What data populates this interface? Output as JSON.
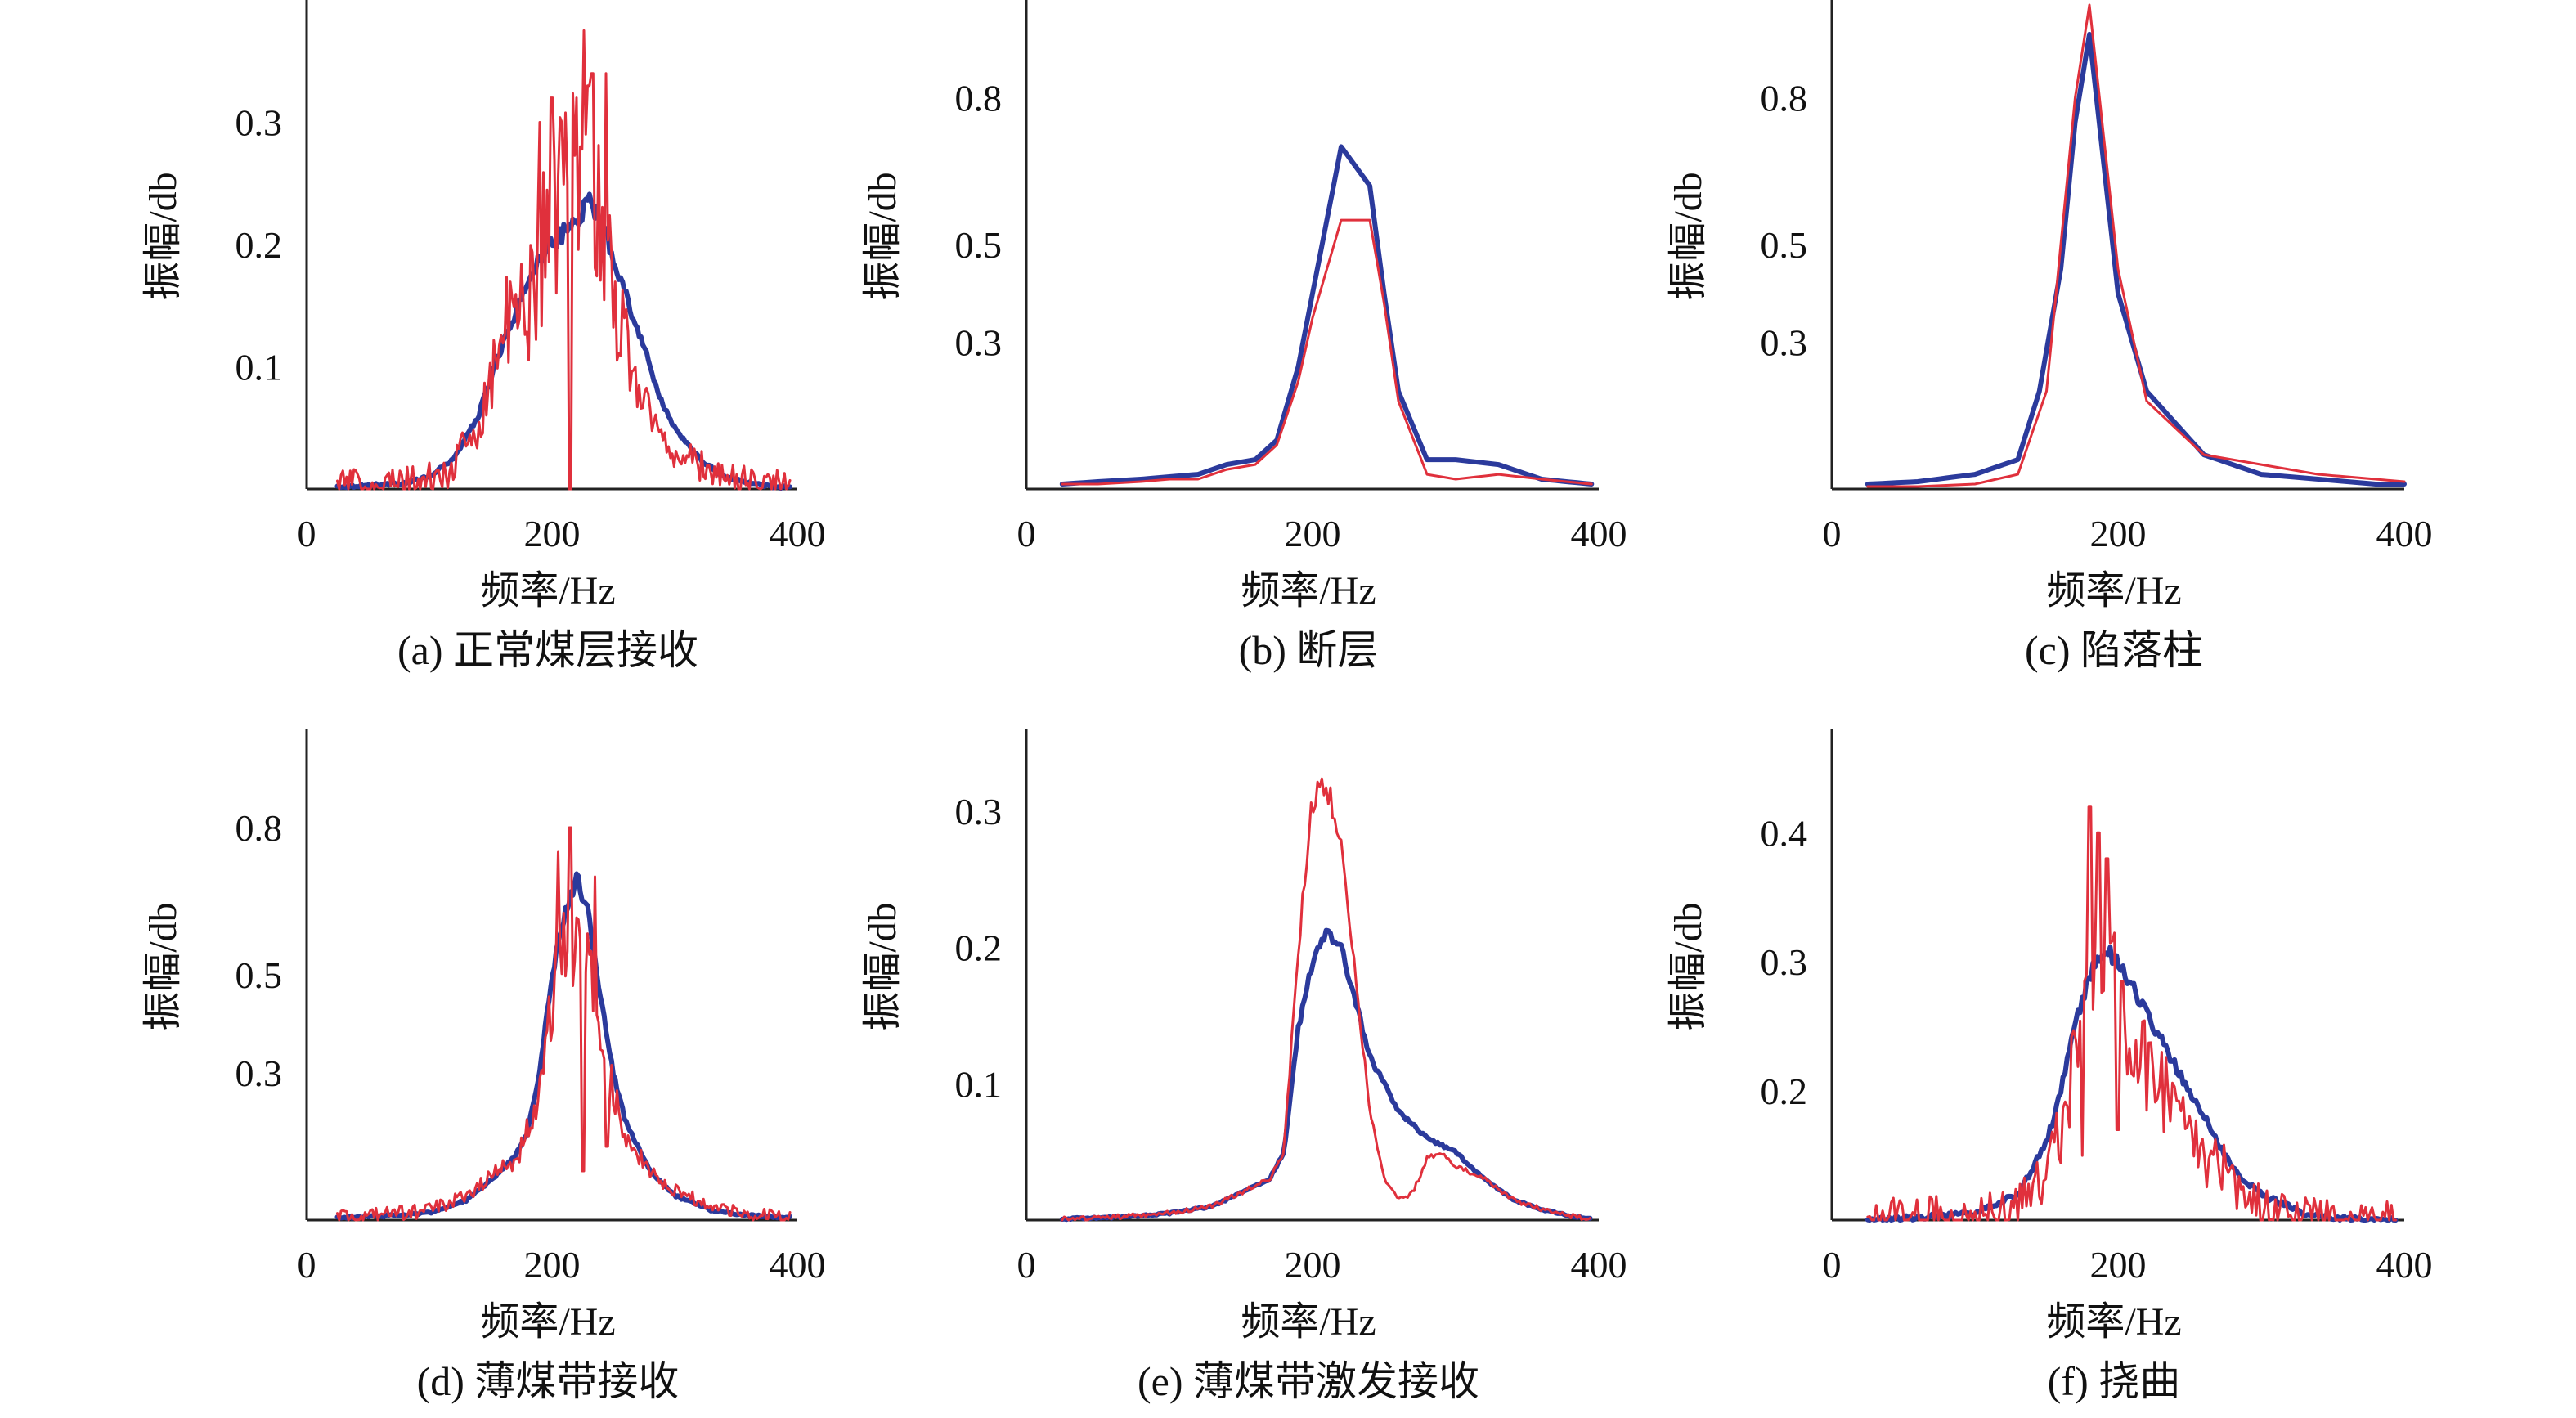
{
  "chart_data": [
    {
      "type": "line",
      "caption": "(a) 正常煤层接收",
      "xlabel": "频率/Hz",
      "ylabel": "振幅/db",
      "xlim": [
        0,
        400
      ],
      "ylim": [
        0,
        0.4
      ],
      "xticks": [
        0,
        200,
        400
      ],
      "yticks": [
        0.1,
        0.2,
        0.3
      ],
      "xtick_labels": [
        "0",
        "200",
        "400"
      ],
      "ytick_labels": [
        "0.1",
        "0.2",
        "0.3"
      ],
      "colors": {
        "blue": "#2b3a9c",
        "red": "#e0303c"
      },
      "series": [
        {
          "color": "#2b3a9c",
          "noise": 0.008,
          "x": [
            25,
            50,
            80,
            100,
            120,
            140,
            150,
            160,
            170,
            180,
            190,
            200,
            210,
            220,
            230,
            240,
            250,
            260,
            270,
            280,
            290,
            300,
            320,
            340,
            360,
            380,
            395
          ],
          "y": [
            0.002,
            0.003,
            0.005,
            0.01,
            0.025,
            0.06,
            0.09,
            0.12,
            0.14,
            0.17,
            0.19,
            0.2,
            0.21,
            0.22,
            0.235,
            0.22,
            0.19,
            0.16,
            0.13,
            0.1,
            0.07,
            0.05,
            0.025,
            0.01,
            0.005,
            0.002,
            0.001
          ]
        },
        {
          "color": "#e0303c",
          "noise": 0.09,
          "x": [
            25,
            50,
            80,
            100,
            115,
            125,
            140,
            150,
            160,
            170,
            180,
            190,
            200,
            210,
            220,
            230,
            240,
            250,
            260,
            270,
            280,
            290,
            300,
            320,
            340,
            360,
            380,
            395
          ],
          "y": [
            0.003,
            0.003,
            0.005,
            0.008,
            0.01,
            0.03,
            0.05,
            0.09,
            0.13,
            0.14,
            0.15,
            0.19,
            0.22,
            0.26,
            0.28,
            0.26,
            0.22,
            0.16,
            0.12,
            0.09,
            0.06,
            0.04,
            0.03,
            0.02,
            0.01,
            0.005,
            0.003,
            0.002
          ],
          "peaks": [
            [
              190,
              0.3
            ],
            [
              200,
              0.32
            ],
            [
              208,
              0.3
            ],
            [
              220,
              0.32
            ],
            [
              226,
              0.375
            ],
            [
              230,
              0.33
            ],
            [
              233,
              0.34
            ],
            [
              244,
              0.34
            ],
            [
              215,
              0.0
            ]
          ]
        }
      ]
    },
    {
      "type": "line",
      "caption": "(b) 断层",
      "xlabel": "频率/Hz",
      "ylabel": "振幅/db",
      "xlim": [
        0,
        400
      ],
      "ylim": [
        0,
        1.0
      ],
      "xticks": [
        0,
        200,
        400
      ],
      "yticks": [
        0.3,
        0.5,
        0.8
      ],
      "xtick_labels": [
        "0",
        "200",
        "400"
      ],
      "ytick_labels": [
        "0.3",
        "0.5",
        "0.8"
      ],
      "colors": {
        "blue": "#2b3a9c",
        "red": "#e0303c"
      },
      "series": [
        {
          "color": "#2b3a9c",
          "noise": 0,
          "x": [
            25,
            50,
            80,
            100,
            120,
            140,
            160,
            175,
            190,
            200,
            210,
            220,
            240,
            250,
            260,
            280,
            300,
            330,
            360,
            395
          ],
          "y": [
            0.01,
            0.015,
            0.02,
            0.025,
            0.03,
            0.05,
            0.06,
            0.1,
            0.25,
            0.4,
            0.55,
            0.7,
            0.62,
            0.4,
            0.2,
            0.06,
            0.06,
            0.05,
            0.02,
            0.01
          ]
        },
        {
          "color": "#e0303c",
          "noise": 0,
          "x": [
            25,
            50,
            80,
            100,
            120,
            140,
            160,
            175,
            190,
            200,
            210,
            220,
            240,
            250,
            260,
            280,
            300,
            330,
            360,
            395
          ],
          "y": [
            0.01,
            0.01,
            0.015,
            0.02,
            0.02,
            0.04,
            0.05,
            0.09,
            0.22,
            0.35,
            0.45,
            0.55,
            0.55,
            0.38,
            0.18,
            0.03,
            0.02,
            0.03,
            0.02,
            0.01
          ]
        }
      ]
    },
    {
      "type": "line",
      "caption": "(c) 陷落柱",
      "xlabel": "频率/Hz",
      "ylabel": "振幅/db",
      "xlim": [
        0,
        400
      ],
      "ylim": [
        0,
        1.0
      ],
      "xticks": [
        0,
        200,
        400
      ],
      "yticks": [
        0.3,
        0.5,
        0.8
      ],
      "xtick_labels": [
        "0",
        "200",
        "400"
      ],
      "ytick_labels": [
        "0.3",
        "0.5",
        "0.8"
      ],
      "colors": {
        "blue": "#2b3a9c",
        "red": "#e0303c"
      },
      "series": [
        {
          "color": "#2b3a9c",
          "noise": 0,
          "x": [
            25,
            60,
            100,
            130,
            145,
            160,
            170,
            180,
            200,
            220,
            260,
            300,
            340,
            380,
            400
          ],
          "y": [
            0.01,
            0.015,
            0.03,
            0.06,
            0.2,
            0.45,
            0.75,
            0.93,
            0.4,
            0.2,
            0.07,
            0.03,
            0.02,
            0.01,
            0.01
          ]
        },
        {
          "color": "#e0303c",
          "noise": 0,
          "x": [
            25,
            60,
            100,
            130,
            150,
            160,
            170,
            180,
            200,
            220,
            260,
            300,
            340,
            380,
            400
          ],
          "y": [
            0.005,
            0.005,
            0.01,
            0.03,
            0.2,
            0.5,
            0.8,
            0.99,
            0.45,
            0.18,
            0.07,
            0.05,
            0.03,
            0.02,
            0.015
          ]
        }
      ]
    },
    {
      "type": "line",
      "caption": "(d) 薄煤带接收",
      "xlabel": "频率/Hz",
      "ylabel": "振幅/db",
      "xlim": [
        0,
        400
      ],
      "ylim": [
        0,
        1.0
      ],
      "xticks": [
        0,
        200,
        400
      ],
      "yticks": [
        0.3,
        0.5,
        0.8
      ],
      "xtick_labels": [
        "0",
        "200",
        "400"
      ],
      "ytick_labels": [
        "0.3",
        "0.5",
        "0.8"
      ],
      "colors": {
        "blue": "#2b3a9c",
        "red": "#e0303c"
      },
      "series": [
        {
          "color": "#2b3a9c",
          "noise": 0.015,
          "x": [
            25,
            60,
            100,
            130,
            150,
            170,
            180,
            190,
            200,
            210,
            220,
            230,
            240,
            250,
            260,
            280,
            300,
            330,
            360,
            395
          ],
          "y": [
            0.005,
            0.008,
            0.015,
            0.04,
            0.08,
            0.13,
            0.18,
            0.3,
            0.5,
            0.62,
            0.7,
            0.62,
            0.45,
            0.3,
            0.2,
            0.1,
            0.05,
            0.02,
            0.01,
            0.005
          ]
        },
        {
          "color": "#e0303c",
          "noise": 0.1,
          "x": [
            25,
            60,
            100,
            130,
            150,
            170,
            180,
            190,
            200,
            210,
            220,
            230,
            240,
            250,
            260,
            280,
            300,
            330,
            360,
            395
          ],
          "y": [
            0.005,
            0.01,
            0.02,
            0.05,
            0.09,
            0.12,
            0.18,
            0.25,
            0.45,
            0.6,
            0.55,
            0.5,
            0.4,
            0.25,
            0.18,
            0.1,
            0.06,
            0.03,
            0.01,
            0.005
          ],
          "peaks": [
            [
              205,
              0.75
            ],
            [
              215,
              0.8
            ],
            [
              235,
              0.7
            ],
            [
              225,
              0.1
            ],
            [
              245,
              0.15
            ]
          ]
        }
      ]
    },
    {
      "type": "line",
      "caption": "(e) 薄煤带激发接收",
      "xlabel": "频率/Hz",
      "ylabel": "振幅/db",
      "xlim": [
        0,
        400
      ],
      "ylim": [
        0,
        0.36
      ],
      "xticks": [
        0,
        200,
        400
      ],
      "yticks": [
        0.1,
        0.2,
        0.3
      ],
      "xtick_labels": [
        "0",
        "200",
        "400"
      ],
      "ytick_labels": [
        "0.1",
        "0.2",
        "0.3"
      ],
      "colors": {
        "blue": "#2b3a9c",
        "red": "#e0303c"
      },
      "series": [
        {
          "color": "#2b3a9c",
          "noise": 0.004,
          "x": [
            25,
            60,
            100,
            130,
            150,
            170,
            180,
            190,
            200,
            210,
            220,
            230,
            240,
            260,
            280,
            300,
            320,
            340,
            360,
            380,
            395
          ],
          "y": [
            0.001,
            0.002,
            0.005,
            0.01,
            0.02,
            0.03,
            0.05,
            0.14,
            0.19,
            0.21,
            0.2,
            0.16,
            0.12,
            0.08,
            0.06,
            0.05,
            0.03,
            0.015,
            0.008,
            0.003,
            0.001
          ]
        },
        {
          "color": "#e0303c",
          "noise": 0.012,
          "x": [
            25,
            60,
            100,
            130,
            150,
            170,
            180,
            190,
            200,
            210,
            220,
            230,
            240,
            250,
            260,
            270,
            280,
            290,
            300,
            320,
            340,
            360,
            380,
            395
          ],
          "y": [
            0.001,
            0.002,
            0.005,
            0.01,
            0.02,
            0.03,
            0.05,
            0.2,
            0.31,
            0.32,
            0.27,
            0.18,
            0.08,
            0.03,
            0.015,
            0.02,
            0.045,
            0.05,
            0.04,
            0.03,
            0.015,
            0.008,
            0.003,
            0.001
          ]
        }
      ]
    },
    {
      "type": "line",
      "caption": "(f) 挠曲",
      "xlabel": "频率/Hz",
      "ylabel": "振幅/db",
      "xlim": [
        0,
        400
      ],
      "ylim": [
        0.1,
        0.48
      ],
      "xticks": [
        0,
        200,
        400
      ],
      "yticks": [
        0.2,
        0.3,
        0.4
      ],
      "xtick_labels": [
        "0",
        "200",
        "400"
      ],
      "ytick_labels": [
        "0.2",
        "0.3",
        "0.4"
      ],
      "colors": {
        "blue": "#2b3a9c",
        "red": "#e0303c"
      },
      "series": [
        {
          "color": "#2b3a9c",
          "noise": 0.006,
          "x": [
            25,
            60,
            100,
            130,
            150,
            160,
            170,
            180,
            190,
            200,
            210,
            220,
            230,
            240,
            250,
            260,
            280,
            300,
            330,
            360,
            395
          ],
          "y": [
            0.1,
            0.102,
            0.105,
            0.12,
            0.16,
            0.2,
            0.25,
            0.29,
            0.31,
            0.3,
            0.28,
            0.26,
            0.24,
            0.22,
            0.2,
            0.18,
            0.14,
            0.12,
            0.105,
            0.101,
            0.1
          ]
        },
        {
          "color": "#e0303c",
          "noise": 0.05,
          "x": [
            25,
            60,
            100,
            130,
            150,
            160,
            170,
            180,
            190,
            200,
            210,
            220,
            230,
            240,
            250,
            260,
            280,
            300,
            330,
            360,
            395
          ],
          "y": [
            0.1,
            0.101,
            0.103,
            0.115,
            0.13,
            0.17,
            0.22,
            0.27,
            0.3,
            0.27,
            0.24,
            0.22,
            0.2,
            0.19,
            0.17,
            0.15,
            0.13,
            0.11,
            0.103,
            0.1,
            0.1
          ],
          "peaks": [
            [
              180,
              0.42
            ],
            [
              186,
              0.4
            ],
            [
              192,
              0.38
            ],
            [
              175,
              0.15
            ],
            [
              200,
              0.17
            ]
          ]
        }
      ]
    }
  ]
}
